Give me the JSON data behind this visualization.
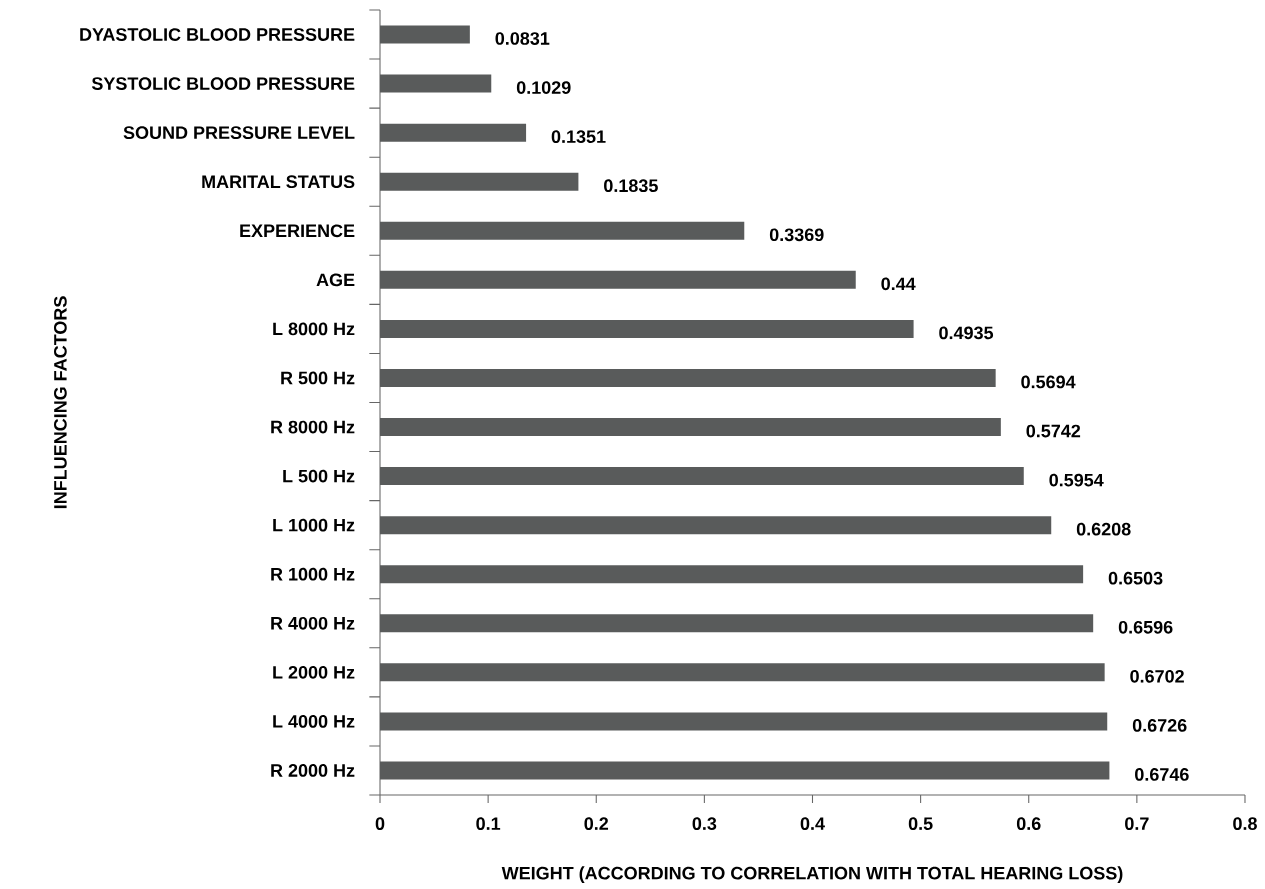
{
  "chart_data": {
    "type": "bar",
    "orientation": "horizontal",
    "xlabel": "WEIGHT (ACCORDING TO CORRELATION WITH TOTAL HEARING LOSS)",
    "ylabel": "INFLUENCING FACTORS",
    "categories": [
      "DYASTOLIC BLOOD PRESSURE",
      "SYSTOLIC BLOOD PRESSURE",
      "SOUND PRESSURE LEVEL",
      "MARITAL STATUS",
      "EXPERIENCE",
      "AGE",
      "L 8000 Hz",
      "R 500 Hz",
      "R 8000 Hz",
      "L 500 Hz",
      "L 1000 Hz",
      "R 1000 Hz",
      "R 4000 Hz",
      "L 2000 Hz",
      "L 4000 Hz",
      "R 2000 Hz"
    ],
    "values": [
      0.0831,
      0.1029,
      0.1351,
      0.1835,
      0.3369,
      0.44,
      0.4935,
      0.5694,
      0.5742,
      0.5954,
      0.6208,
      0.6503,
      0.6596,
      0.6702,
      0.6726,
      0.6746
    ],
    "color": "#595b5b",
    "xlim": [
      0,
      0.8
    ],
    "xticks": [
      0,
      0.1,
      0.2,
      0.3,
      0.4,
      0.5,
      0.6,
      0.7,
      0.8
    ],
    "data_labels": true
  }
}
